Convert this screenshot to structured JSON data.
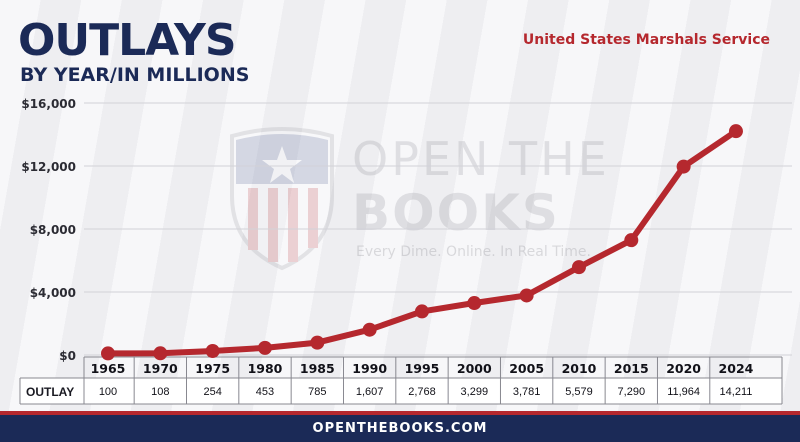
{
  "header": {
    "title": "OUTLAYS",
    "subtitle": "BY YEAR/IN MILLIONS",
    "agency": "United States Marshals Service"
  },
  "watermark": {
    "line1": "OPEN THE",
    "line2": "BOOKS",
    "tagline": "Every Dime. Online. In Real Time."
  },
  "footer": {
    "site": "OPENTHEBOOKS.COM"
  },
  "colors": {
    "navy": "#1b2a57",
    "red": "#b5282e"
  },
  "chart_data": {
    "type": "line",
    "title": "OUTLAYS",
    "subtitle": "BY YEAR/IN MILLIONS",
    "xlabel": "",
    "ylabel": "",
    "categories": [
      "1965",
      "1970",
      "1975",
      "1980",
      "1985",
      "1990",
      "1995",
      "2000",
      "2005",
      "2010",
      "2015",
      "2020",
      "2024"
    ],
    "series": [
      {
        "name": "OUTLAY",
        "values": [
          100,
          108,
          254,
          453,
          785,
          1607,
          2768,
          3299,
          3781,
          5579,
          7290,
          11964,
          14211
        ]
      }
    ],
    "value_labels": [
      "100",
      "108",
      "254",
      "453",
      "785",
      "1,607",
      "2,768",
      "3,299",
      "3,781",
      "5,579",
      "7,290",
      "11,964",
      "14,211"
    ],
    "row_label": "OUTLAY",
    "yticks": [
      0,
      4000,
      8000,
      12000,
      16000
    ],
    "ytick_labels": [
      "$0",
      "$4,000",
      "$8,000",
      "$12,000",
      "$16,000"
    ],
    "ylim": [
      0,
      16000
    ],
    "grid": true,
    "legend": "none",
    "line_color": "#b5282e"
  }
}
